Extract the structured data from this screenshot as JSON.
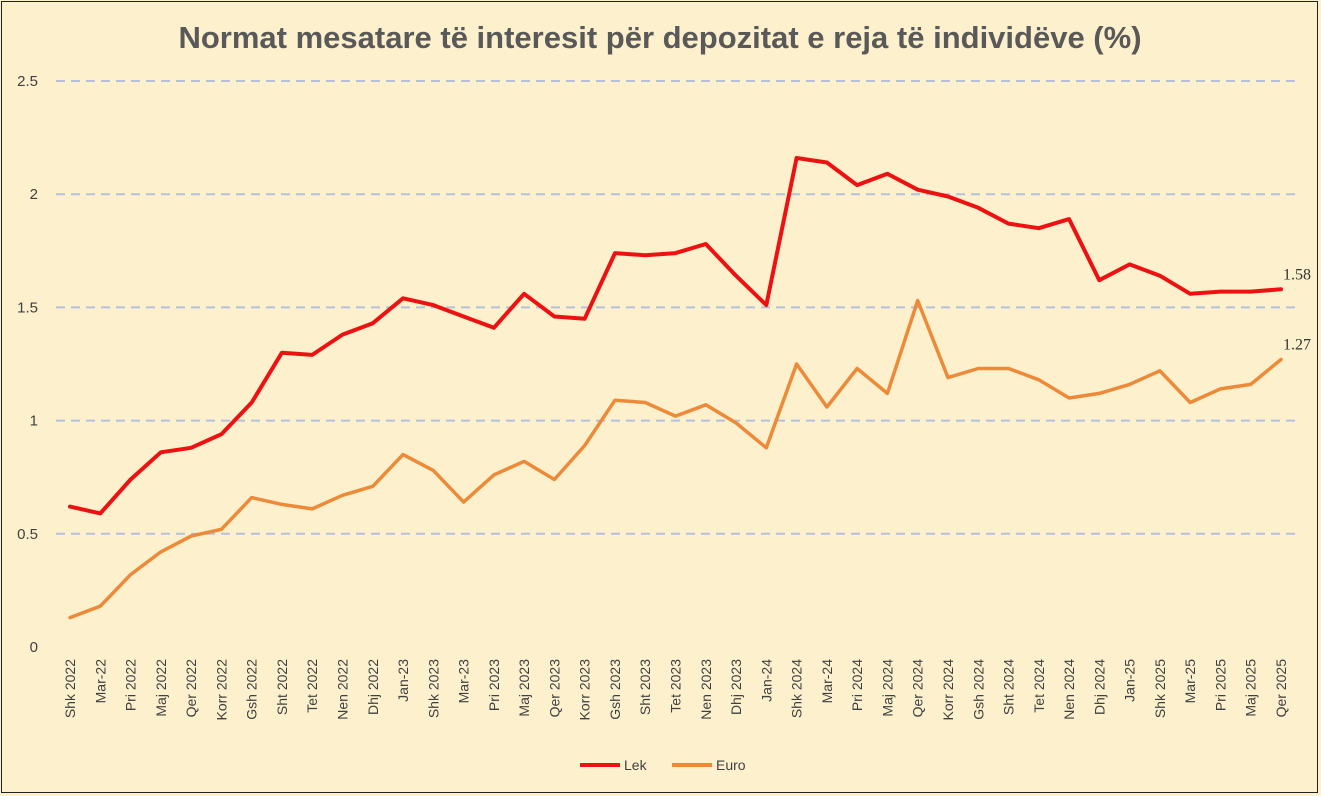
{
  "chart_data": {
    "type": "line",
    "title": "Normat mesatare të interesit për depozitat e reja të individëve (%)",
    "xlabel": "",
    "ylabel": "",
    "ylim": [
      0,
      2.5
    ],
    "yticks": [
      "0",
      "0.5",
      "1",
      "1.5",
      "2",
      "2.5"
    ],
    "grid": "horizontal-dashed",
    "legend_position": "bottom",
    "categories": [
      "Shk 2022",
      "Mar-22",
      "Pri 2022",
      "Maj 2022",
      "Qer 2022",
      "Korr 2022",
      "Gsh 2022",
      "Sht 2022",
      "Tet 2022",
      "Nen 2022",
      "Dhj 2022",
      "Jan-23",
      "Shk 2023",
      "Mar-23",
      "Pri 2023",
      "Maj 2023",
      "Qer 2023",
      "Korr 2023",
      "Gsh 2023",
      "Sht 2023",
      "Tet 2023",
      "Nen 2023",
      "Dhj 2023",
      "Jan-24",
      "Shk 2024",
      "Mar-24",
      "Pri 2024",
      "Maj 2024",
      "Qer 2024",
      "Korr 2024",
      "Gsh 2024",
      "Sht 2024",
      "Tet 2024",
      "Nen 2024",
      "Dhj 2024",
      "Jan-25",
      "Shk 2025",
      "Mar-25",
      "Pri 2025",
      "Maj 2025",
      "Qer 2025"
    ],
    "series": [
      {
        "name": "Lek",
        "color": "#ee1111",
        "values": [
          0.62,
          0.59,
          0.74,
          0.86,
          0.88,
          0.94,
          1.08,
          1.3,
          1.29,
          1.38,
          1.43,
          1.54,
          1.51,
          1.46,
          1.41,
          1.56,
          1.46,
          1.45,
          1.74,
          1.73,
          1.74,
          1.78,
          1.64,
          1.51,
          2.16,
          2.14,
          2.04,
          2.09,
          2.02,
          1.99,
          1.94,
          1.87,
          1.85,
          1.89,
          1.62,
          1.69,
          1.64,
          1.56,
          1.57,
          1.57,
          1.58
        ],
        "last_label": "1.58"
      },
      {
        "name": "Euro",
        "color": "#ed8a3a",
        "values": [
          0.13,
          0.18,
          0.32,
          0.42,
          0.49,
          0.52,
          0.66,
          0.63,
          0.61,
          0.67,
          0.71,
          0.85,
          0.78,
          0.64,
          0.76,
          0.82,
          0.74,
          0.89,
          1.09,
          1.08,
          1.02,
          1.07,
          0.99,
          0.88,
          1.25,
          1.06,
          1.23,
          1.12,
          1.53,
          1.19,
          1.23,
          1.23,
          1.18,
          1.1,
          1.12,
          1.16,
          1.22,
          1.08,
          1.14,
          1.16,
          1.27
        ],
        "last_label": "1.27"
      }
    ]
  }
}
